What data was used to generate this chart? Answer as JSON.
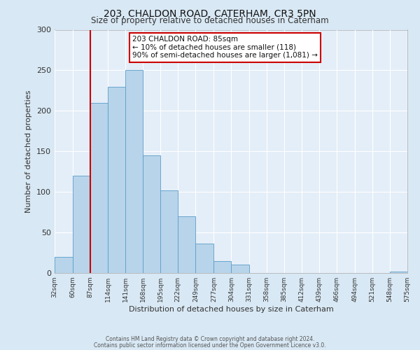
{
  "title": "203, CHALDON ROAD, CATERHAM, CR3 5PN",
  "subtitle": "Size of property relative to detached houses in Caterham",
  "xlabel": "Distribution of detached houses by size in Caterham",
  "ylabel": "Number of detached properties",
  "bar_color": "#b8d4ea",
  "bar_edge_color": "#5a9dc8",
  "background_color": "#d8e8f4",
  "plot_bg_color": "#e4eef8",
  "grid_color": "#ffffff",
  "annotation_box_color": "#ffffff",
  "annotation_box_edge": "#cc0000",
  "red_line_color": "#cc0000",
  "bin_edges": [
    32,
    60,
    87,
    114,
    141,
    168,
    195,
    222,
    249,
    277,
    304,
    331,
    358,
    385,
    412,
    439,
    466,
    494,
    521,
    548,
    575
  ],
  "bar_heights": [
    20,
    120,
    210,
    230,
    250,
    145,
    102,
    70,
    36,
    15,
    10,
    0,
    0,
    0,
    0,
    0,
    0,
    0,
    0,
    2
  ],
  "tick_labels": [
    "32sqm",
    "60sqm",
    "87sqm",
    "114sqm",
    "141sqm",
    "168sqm",
    "195sqm",
    "222sqm",
    "249sqm",
    "277sqm",
    "304sqm",
    "331sqm",
    "358sqm",
    "385sqm",
    "412sqm",
    "439sqm",
    "466sqm",
    "494sqm",
    "521sqm",
    "548sqm",
    "575sqm"
  ],
  "red_line_x": 87,
  "ylim": [
    0,
    300
  ],
  "yticks": [
    0,
    50,
    100,
    150,
    200,
    250,
    300
  ],
  "annotation_title": "203 CHALDON ROAD: 85sqm",
  "annotation_line1": "← 10% of detached houses are smaller (118)",
  "annotation_line2": "90% of semi-detached houses are larger (1,081) →",
  "footer1": "Contains HM Land Registry data © Crown copyright and database right 2024.",
  "footer2": "Contains public sector information licensed under the Open Government Licence v3.0."
}
